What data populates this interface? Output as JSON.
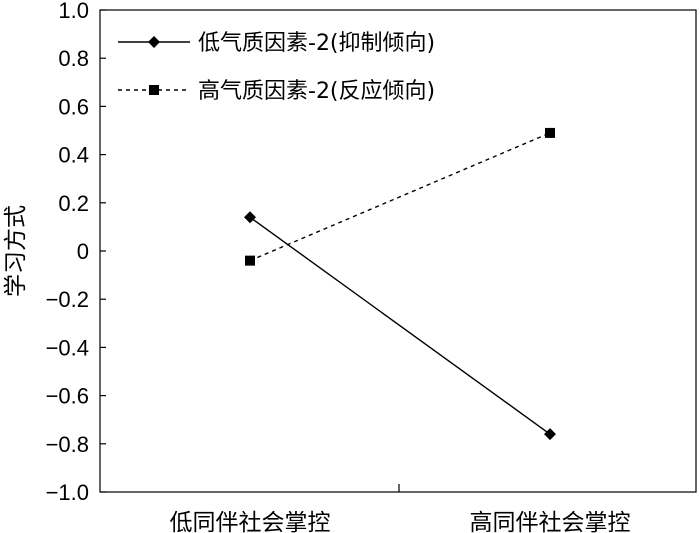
{
  "chart_data": {
    "type": "line",
    "categories": [
      "低同伴社会掌控",
      "高同伴社会掌控"
    ],
    "ylabel": "学习方式",
    "ylim": [
      -1.0,
      1.0
    ],
    "yticks": [
      "1.0",
      "0.8",
      "0.6",
      "0.4",
      "0.2",
      "0",
      "−0.2",
      "−0.4",
      "−0.6",
      "−0.8",
      "−1.0"
    ],
    "grid": false,
    "legend_position": "top-left",
    "series": [
      {
        "name": "低气质因素-2(抑制倾向)",
        "values": [
          0.14,
          -0.76
        ],
        "marker": "diamond",
        "line": "solid",
        "color": "#000000"
      },
      {
        "name": "高气质因素-2(反应倾向)",
        "values": [
          -0.04,
          0.49
        ],
        "marker": "square",
        "line": "dashed",
        "color": "#000000"
      }
    ]
  }
}
